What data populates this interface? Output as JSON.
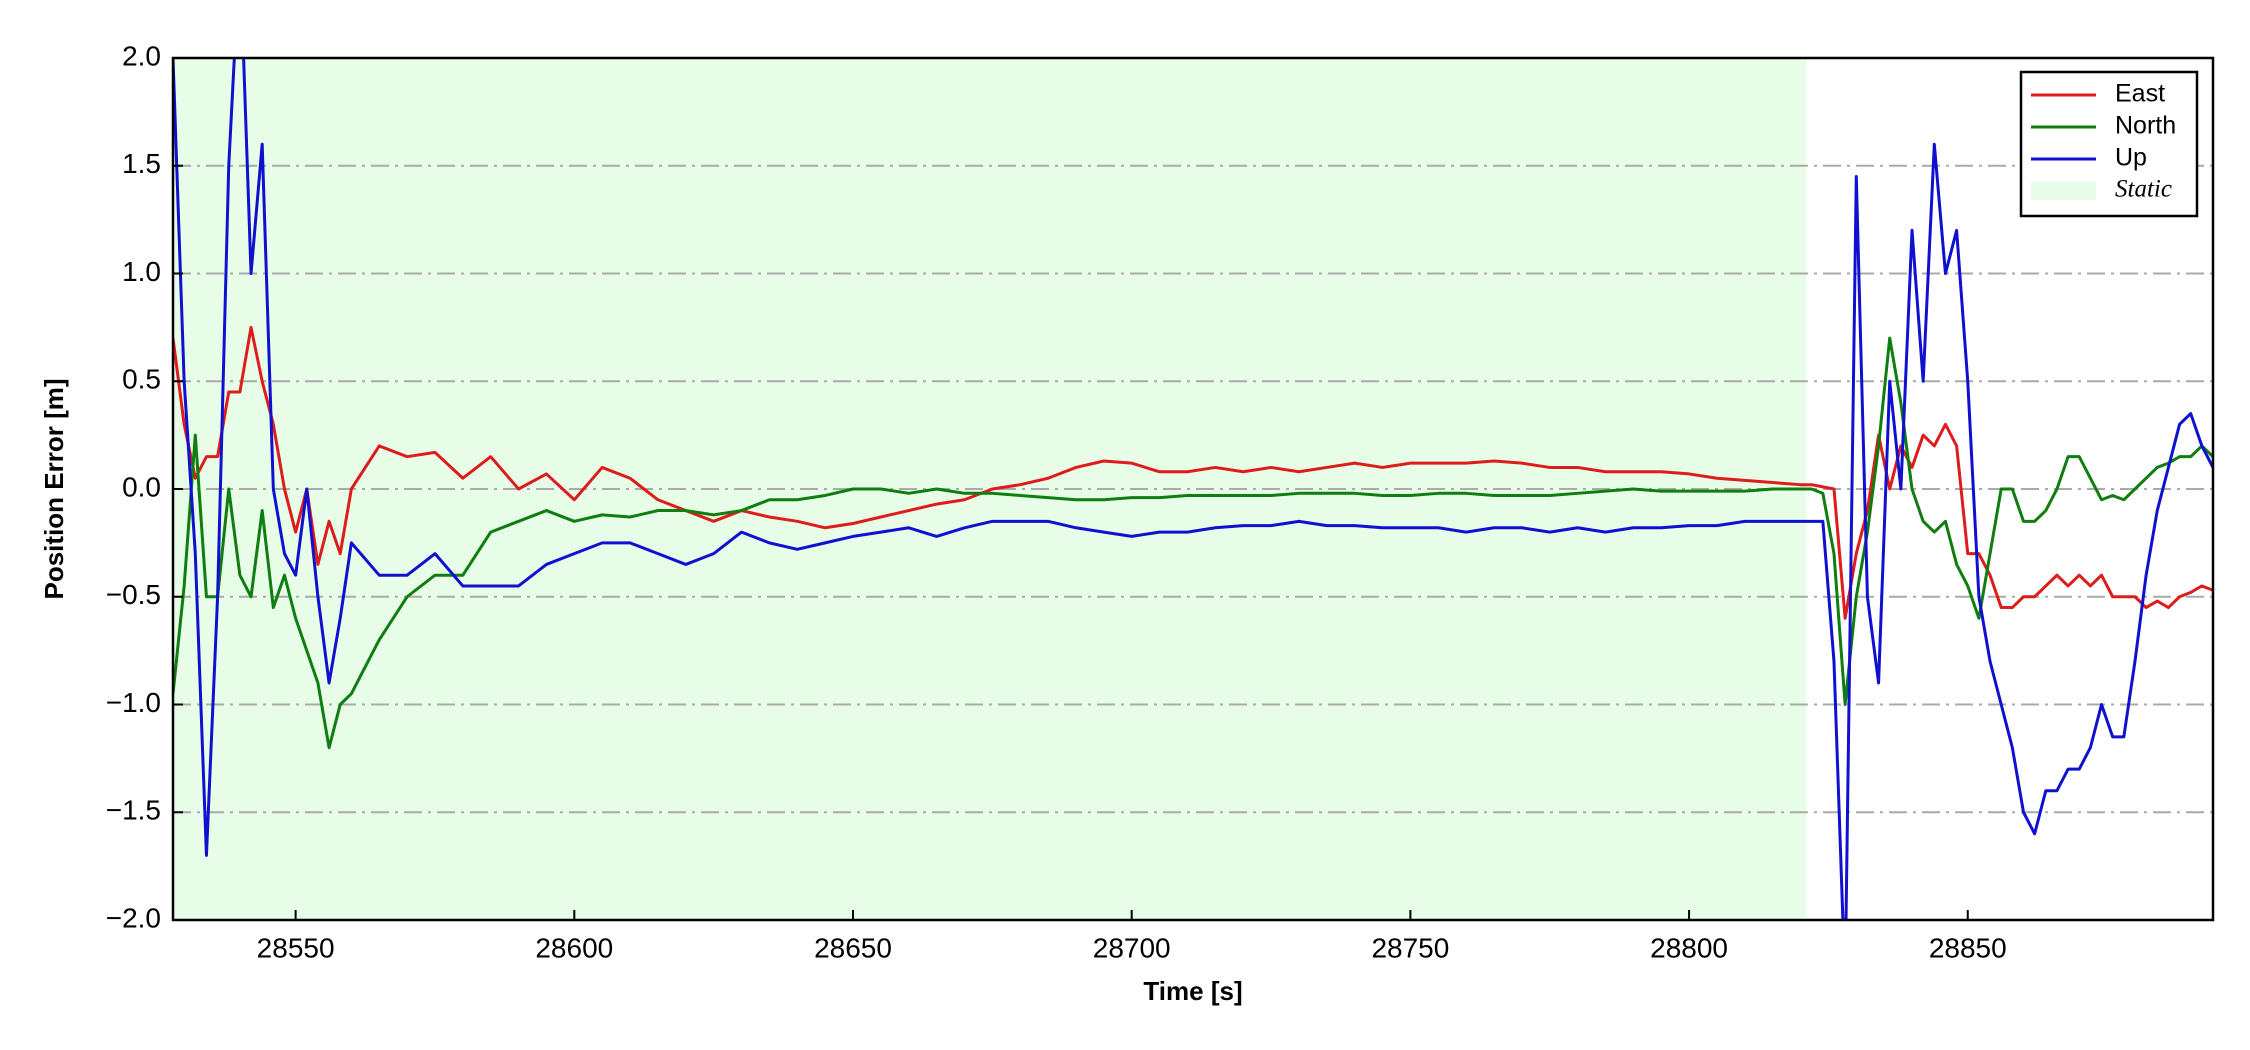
{
  "chart_data": {
    "type": "line",
    "xlabel": "Time [s]",
    "ylabel": "Position Error [m]",
    "xlim": [
      28528,
      28894
    ],
    "ylim": [
      -2.0,
      2.0
    ],
    "xticks": [
      28550,
      28600,
      28650,
      28700,
      28750,
      28800,
      28850
    ],
    "yticks": [
      {
        "value": -2.0,
        "label": "−2.0"
      },
      {
        "value": -1.5,
        "label": "−1.5"
      },
      {
        "value": -1.0,
        "label": "−1.0"
      },
      {
        "value": -0.5,
        "label": "−0.5"
      },
      {
        "value": 0.0,
        "label": "0.0"
      },
      {
        "value": 0.5,
        "label": "0.5"
      },
      {
        "value": 1.0,
        "label": "1.0"
      },
      {
        "value": 1.5,
        "label": "1.5"
      },
      {
        "value": 2.0,
        "label": "2.0"
      }
    ],
    "grid": true,
    "legend": "upper right",
    "shaded_region": {
      "name": "Static",
      "x": [
        28528,
        28821
      ],
      "color": "#e8fde8"
    },
    "x": [
      28528,
      28530,
      28532,
      28534,
      28536,
      28538,
      28540,
      28542,
      28544,
      28546,
      28548,
      28550,
      28552,
      28554,
      28556,
      28558,
      28560,
      28565,
      28570,
      28575,
      28580,
      28585,
      28590,
      28595,
      28600,
      28605,
      28610,
      28615,
      28620,
      28625,
      28630,
      28635,
      28640,
      28645,
      28650,
      28655,
      28660,
      28665,
      28670,
      28675,
      28680,
      28685,
      28690,
      28695,
      28700,
      28705,
      28710,
      28715,
      28720,
      28725,
      28730,
      28735,
      28740,
      28745,
      28750,
      28755,
      28760,
      28765,
      28770,
      28775,
      28780,
      28785,
      28790,
      28795,
      28800,
      28805,
      28810,
      28815,
      28820,
      28822,
      28824,
      28826,
      28828,
      28830,
      28832,
      28834,
      28836,
      28838,
      28840,
      28842,
      28844,
      28846,
      28848,
      28850,
      28852,
      28854,
      28856,
      28858,
      28860,
      28862,
      28864,
      28866,
      28868,
      28870,
      28872,
      28874,
      28876,
      28878,
      28880,
      28882,
      28884,
      28886,
      28888,
      28890,
      28892,
      28894
    ],
    "series": [
      {
        "name": "East",
        "color": "#dd1c1c",
        "values": [
          0.7,
          0.3,
          0.05,
          0.15,
          0.15,
          0.45,
          0.45,
          0.75,
          0.5,
          0.3,
          0.0,
          -0.2,
          0.0,
          -0.35,
          -0.15,
          -0.3,
          0.0,
          0.2,
          0.15,
          0.17,
          0.05,
          0.15,
          0.0,
          0.07,
          -0.05,
          0.1,
          0.05,
          -0.05,
          -0.1,
          -0.15,
          -0.1,
          -0.13,
          -0.15,
          -0.18,
          -0.16,
          -0.13,
          -0.1,
          -0.07,
          -0.05,
          0.0,
          0.02,
          0.05,
          0.1,
          0.13,
          0.12,
          0.08,
          0.08,
          0.1,
          0.08,
          0.1,
          0.08,
          0.1,
          0.12,
          0.1,
          0.12,
          0.12,
          0.12,
          0.13,
          0.12,
          0.1,
          0.1,
          0.08,
          0.08,
          0.08,
          0.07,
          0.05,
          0.04,
          0.03,
          0.02,
          0.02,
          0.01,
          0.0,
          -0.6,
          -0.3,
          -0.1,
          0.25,
          0.0,
          0.2,
          0.1,
          0.25,
          0.2,
          0.3,
          0.2,
          -0.3,
          -0.3,
          -0.4,
          -0.55,
          -0.55,
          -0.5,
          -0.5,
          -0.45,
          -0.4,
          -0.45,
          -0.4,
          -0.45,
          -0.4,
          -0.5,
          -0.5,
          -0.5,
          -0.55,
          -0.52,
          -0.55,
          -0.5,
          -0.48,
          -0.45,
          -0.47
        ]
      },
      {
        "name": "North",
        "color": "#0f7d0f",
        "values": [
          -0.95,
          -0.45,
          0.25,
          -0.5,
          -0.5,
          0.0,
          -0.4,
          -0.5,
          -0.1,
          -0.55,
          -0.4,
          -0.6,
          -0.75,
          -0.9,
          -1.2,
          -1.0,
          -0.95,
          -0.7,
          -0.5,
          -0.4,
          -0.4,
          -0.2,
          -0.15,
          -0.1,
          -0.15,
          -0.12,
          -0.13,
          -0.1,
          -0.1,
          -0.12,
          -0.1,
          -0.05,
          -0.05,
          -0.03,
          0.0,
          0.0,
          -0.02,
          0.0,
          -0.02,
          -0.02,
          -0.03,
          -0.04,
          -0.05,
          -0.05,
          -0.04,
          -0.04,
          -0.03,
          -0.03,
          -0.03,
          -0.03,
          -0.02,
          -0.02,
          -0.02,
          -0.03,
          -0.03,
          -0.02,
          -0.02,
          -0.03,
          -0.03,
          -0.03,
          -0.02,
          -0.01,
          0.0,
          -0.01,
          -0.01,
          -0.01,
          -0.01,
          0.0,
          0.0,
          0.0,
          -0.02,
          -0.3,
          -1.0,
          -0.5,
          -0.2,
          0.2,
          0.7,
          0.4,
          0.0,
          -0.15,
          -0.2,
          -0.15,
          -0.35,
          -0.45,
          -0.6,
          -0.3,
          0.0,
          0.0,
          -0.15,
          -0.15,
          -0.1,
          0.0,
          0.15,
          0.15,
          0.05,
          -0.05,
          -0.03,
          -0.05,
          0.0,
          0.05,
          0.1,
          0.12,
          0.15,
          0.15,
          0.2,
          0.15
        ]
      },
      {
        "name": "Up",
        "color": "#1010d0",
        "values": [
          2.0,
          0.5,
          -0.3,
          -1.7,
          -0.5,
          1.5,
          2.5,
          1.0,
          1.6,
          0.0,
          -0.3,
          -0.4,
          0.0,
          -0.5,
          -0.9,
          -0.6,
          -0.25,
          -0.4,
          -0.4,
          -0.3,
          -0.45,
          -0.45,
          -0.45,
          -0.35,
          -0.3,
          -0.25,
          -0.25,
          -0.3,
          -0.35,
          -0.3,
          -0.2,
          -0.25,
          -0.28,
          -0.25,
          -0.22,
          -0.2,
          -0.18,
          -0.22,
          -0.18,
          -0.15,
          -0.15,
          -0.15,
          -0.18,
          -0.2,
          -0.22,
          -0.2,
          -0.2,
          -0.18,
          -0.17,
          -0.17,
          -0.15,
          -0.17,
          -0.17,
          -0.18,
          -0.18,
          -0.18,
          -0.2,
          -0.18,
          -0.18,
          -0.2,
          -0.18,
          -0.2,
          -0.18,
          -0.18,
          -0.17,
          -0.17,
          -0.15,
          -0.15,
          -0.15,
          -0.15,
          -0.15,
          -0.8,
          -2.3,
          1.45,
          -0.5,
          -0.9,
          0.5,
          0.0,
          1.2,
          0.5,
          1.6,
          1.0,
          1.2,
          0.5,
          -0.5,
          -0.8,
          -1.0,
          -1.2,
          -1.5,
          -1.6,
          -1.4,
          -1.4,
          -1.3,
          -1.3,
          -1.2,
          -1.0,
          -1.15,
          -1.15,
          -0.8,
          -0.4,
          -0.1,
          0.1,
          0.3,
          0.35,
          0.2,
          0.1
        ]
      }
    ]
  }
}
